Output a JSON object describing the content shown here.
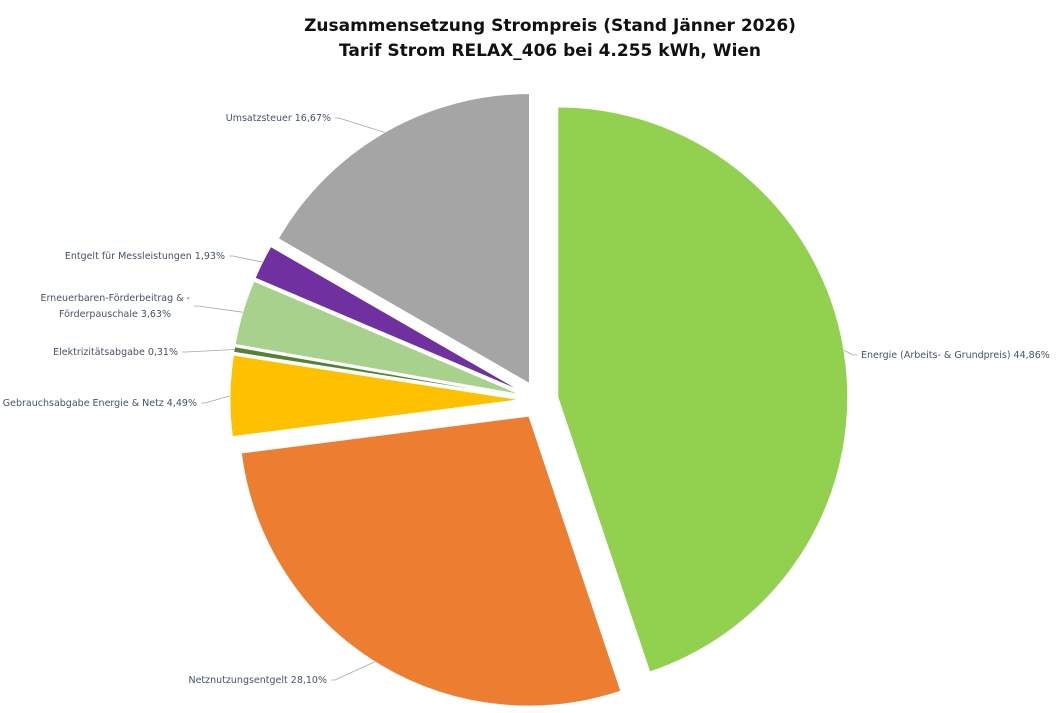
{
  "chart_data": {
    "type": "pie",
    "title": "Zusammensetzung Strompreis (Stand Jänner 2026)",
    "subtitle": "Tarif Strom RELAX_406 bei 4.255 kWh, Wien",
    "slices": [
      {
        "name": "Energie (Arbeits- & Grundpreis)",
        "value": 44.86,
        "label": "Energie (Arbeits- & Grundpreis) 44,86%",
        "color": "#92d050"
      },
      {
        "name": "Netznutzungsentgelt",
        "value": 28.1,
        "label": "Netznutzungsentgelt  28,10%",
        "color": "#ed7d31"
      },
      {
        "name": "Gebrauchsabgabe Energie & Netz",
        "value": 4.49,
        "label": "Gebrauchsabgabe Energie & Netz 4,49%",
        "color": "#ffc000"
      },
      {
        "name": "Elektrizitätsabgabe",
        "value": 0.31,
        "label": "Elektrizitätsabgabe  0,31%",
        "color": "#548235"
      },
      {
        "name": "Erneuerbaren-Förderbeitrag & -Förderpauschale",
        "value": 3.63,
        "label_lines": [
          "Erneuerbaren-Förderbeitrag & -",
          "Förderpauschale 3,63%"
        ],
        "color": "#a9d18e"
      },
      {
        "name": "Entgelt für Messleistungen",
        "value": 1.93,
        "label": "Entgelt für Messleistungen  1,93%",
        "color": "#7030a0"
      },
      {
        "name": "Umsatzsteuer",
        "value": 16.67,
        "label": "Umsatzsteuer  16,67%",
        "color": "#a5a5a5"
      }
    ],
    "exploded": true,
    "start_angle": "12 o'clock",
    "direction": "clockwise",
    "legend": "none",
    "data_labels": "outside-with-leader-lines"
  }
}
